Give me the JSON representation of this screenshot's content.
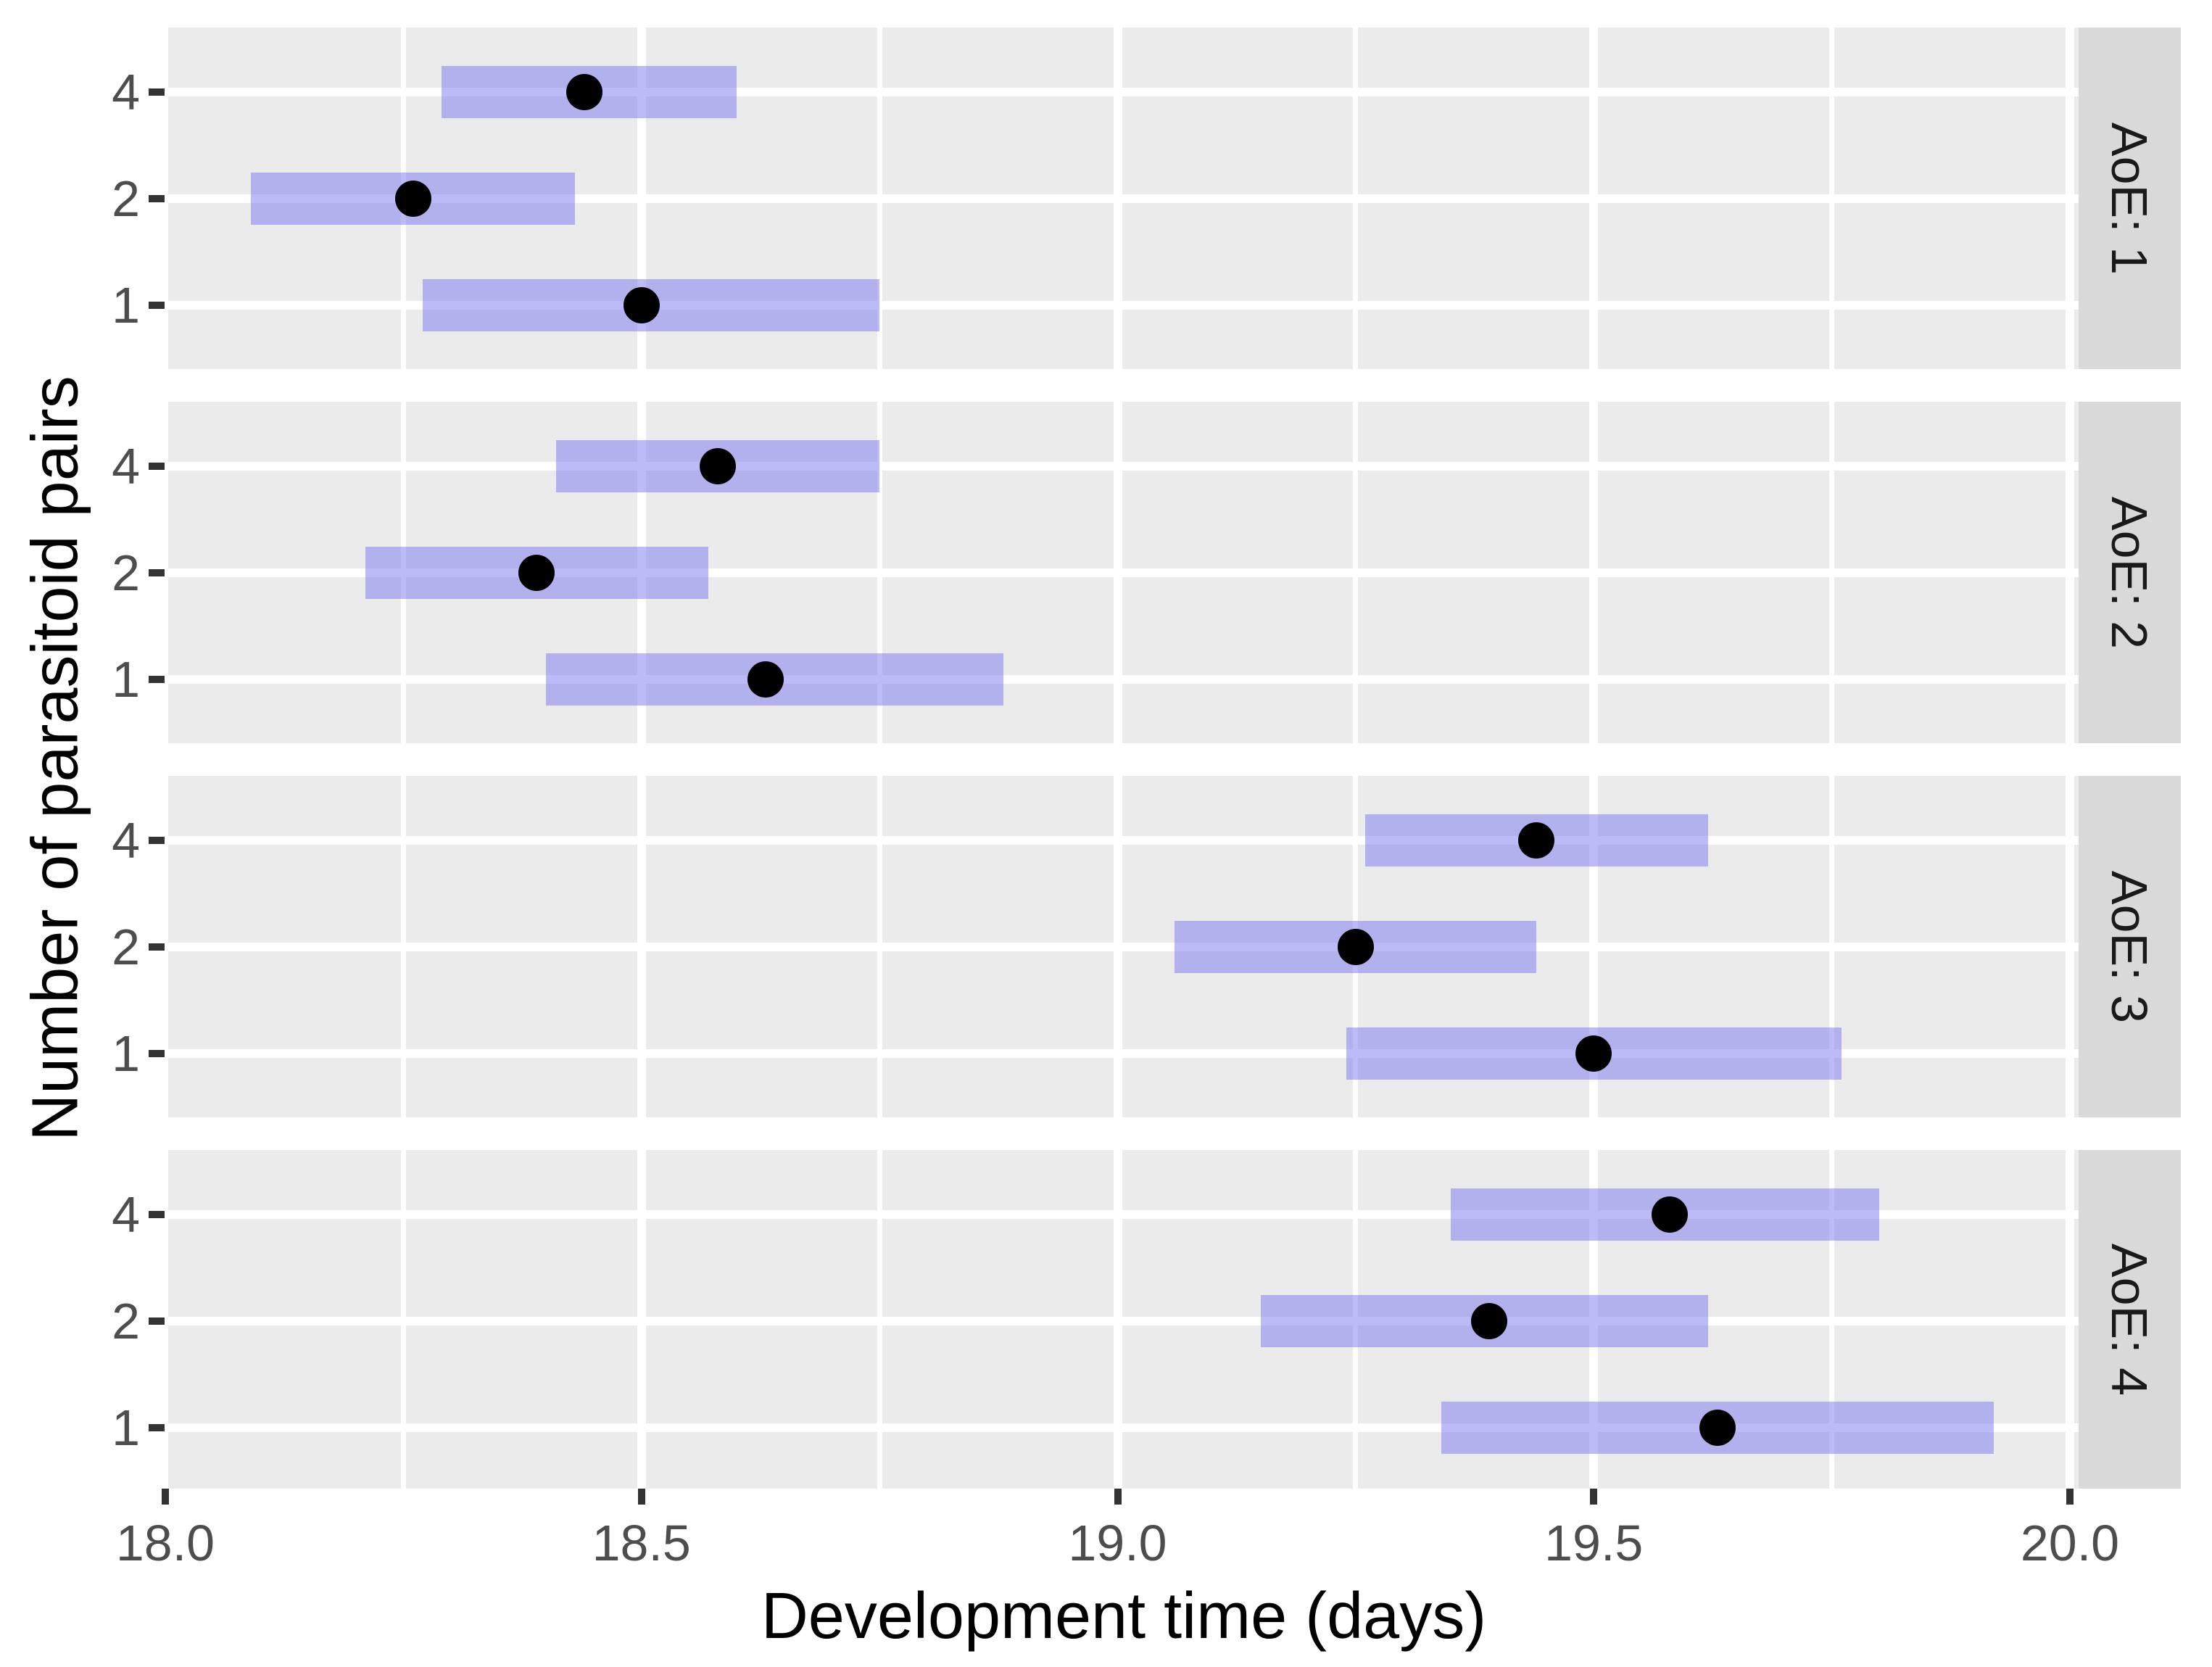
{
  "colors": {
    "figure_bg": "#ffffff",
    "panel_bg": "#ebebeb",
    "strip_bg": "#d9d9d9",
    "strip_text": "#1a1a1a",
    "gridline": "#ffffff",
    "bar_fill": "rgba(128,125,240,0.52)",
    "point": "#000000",
    "tick_mark": "#333333",
    "tick_label": "#4d4d4d",
    "axis_title": "#000000"
  },
  "chart_data": {
    "type": "bar",
    "subtype": "horizontal interval (pointrange) plot, 4 stacked facets",
    "title": "",
    "xlabel": "Development time (days)",
    "ylabel": "Number of parasitoid pairs",
    "xlim": [
      18.0,
      20.0
    ],
    "grid": "on",
    "legend_position": "none",
    "x_ticks": [
      {
        "value": 18.0,
        "label": "18.0"
      },
      {
        "value": 18.5,
        "label": "18.5"
      },
      {
        "value": 19.0,
        "label": "19.0"
      },
      {
        "value": 19.5,
        "label": "19.5"
      },
      {
        "value": 20.0,
        "label": "20.0"
      }
    ],
    "x_major_gridlines": [
      18.5,
      19.0,
      19.5,
      20.0
    ],
    "x_minor_gridlines": [
      18.25,
      18.75,
      19.25,
      19.75
    ],
    "y_categories_top_to_bottom": [
      "4",
      "2",
      "1"
    ],
    "facets": [
      {
        "strip": "AoE: 1",
        "rows": [
          {
            "pairs": "4",
            "interval_low": 18.29,
            "interval_high": 18.6,
            "estimate": 18.44
          },
          {
            "pairs": "2",
            "interval_low": 18.09,
            "interval_high": 18.43,
            "estimate": 18.26
          },
          {
            "pairs": "1",
            "interval_low": 18.27,
            "interval_high": 18.75,
            "estimate": 18.5
          }
        ]
      },
      {
        "strip": "AoE: 2",
        "rows": [
          {
            "pairs": "4",
            "interval_low": 18.41,
            "interval_high": 18.75,
            "estimate": 18.58
          },
          {
            "pairs": "2",
            "interval_low": 18.21,
            "interval_high": 18.57,
            "estimate": 18.39
          },
          {
            "pairs": "1",
            "interval_low": 18.4,
            "interval_high": 18.88,
            "estimate": 18.63
          }
        ]
      },
      {
        "strip": "AoE: 3",
        "rows": [
          {
            "pairs": "4",
            "interval_low": 19.26,
            "interval_high": 19.62,
            "estimate": 19.44
          },
          {
            "pairs": "2",
            "interval_low": 19.06,
            "interval_high": 19.44,
            "estimate": 19.25
          },
          {
            "pairs": "1",
            "interval_low": 19.24,
            "interval_high": 19.76,
            "estimate": 19.5
          }
        ]
      },
      {
        "strip": "AoE: 4",
        "rows": [
          {
            "pairs": "4",
            "interval_low": 19.35,
            "interval_high": 19.8,
            "estimate": 19.58
          },
          {
            "pairs": "2",
            "interval_low": 19.15,
            "interval_high": 19.62,
            "estimate": 19.39
          },
          {
            "pairs": "1",
            "interval_low": 19.34,
            "interval_high": 19.92,
            "estimate": 19.63
          }
        ]
      }
    ]
  }
}
